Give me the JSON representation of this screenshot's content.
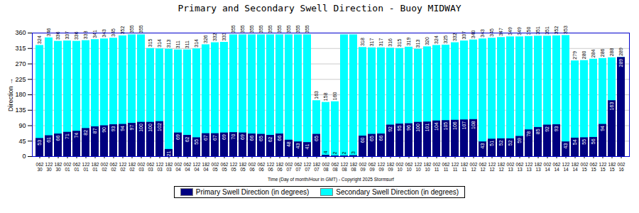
{
  "chart_data": {
    "type": "bar",
    "title": "Primary and Secondary Swell Direction - Buoy MIDWAY",
    "xlabel": "Time (Day of month/Hour in GMT) - Copyright 2025 Stormsurf",
    "ylabel": "Direction",
    "categories": [
      "062\n30",
      "122\n30",
      "182\n30",
      "002\n01",
      "062\n01",
      "122\n01",
      "182\n01",
      "002\n02",
      "062\n02",
      "122\n02",
      "182\n02",
      "002\n03",
      "062\n03",
      "122\n03",
      "182\n03",
      "002\n04",
      "062\n04",
      "122\n04",
      "182\n04",
      "002\n05",
      "062\n05",
      "122\n05",
      "182\n05",
      "002\n06",
      "062\n06",
      "122\n06",
      "182\n06",
      "002\n07",
      "062\n07",
      "122\n07",
      "182\n07",
      "002\n08",
      "062\n08",
      "122\n08",
      "182\n08",
      "002\n09",
      "062\n09",
      "122\n09",
      "182\n09",
      "002\n10",
      "062\n10",
      "122\n10",
      "182\n10",
      "002\n11",
      "062\n11",
      "122\n11",
      "182\n11",
      "002\n12",
      "062\n12",
      "122\n12",
      "182\n12",
      "002\n13",
      "062\n13",
      "122\n13",
      "182\n13",
      "002\n14",
      "062\n14",
      "122\n14",
      "182\n14",
      "002\n15",
      "062\n15",
      "122\n15",
      "182\n15",
      "002\n16"
    ],
    "series": [
      {
        "name": "Primary Swell Direction (in degrees)",
        "color": "#000080",
        "values": [
          53,
          61,
          66,
          71,
          74,
          82,
          87,
          90,
          93,
          94,
          97,
          100,
          100,
          102,
          21,
          69,
          62,
          55,
          67,
          67,
          69,
          70,
          69,
          66,
          65,
          62,
          66,
          48,
          43,
          41,
          65,
          4,
          2,
          2,
          3,
          60,
          65,
          66,
          92,
          95,
          96,
          100,
          101,
          104,
          105,
          106,
          107,
          108,
          43,
          51,
          52,
          52,
          59,
          78,
          85,
          92,
          93,
          43,
          54,
          55,
          56,
          94,
          163,
          289
        ]
      },
      {
        "name": "Secondary Swell Direction (in degrees)",
        "color": "#00FFFF",
        "values": [
          324,
          346,
          336,
          337,
          336,
          338,
          341,
          343,
          345,
          352,
          355,
          355,
          315,
          314,
          313,
          311,
          311,
          314,
          326,
          332,
          333,
          355,
          355,
          355,
          355,
          355,
          355,
          355,
          355,
          355,
          163,
          158,
          160,
          355,
          355,
          318,
          317,
          317,
          316,
          315,
          319,
          313,
          320,
          324,
          325,
          332,
          337,
          340,
          343,
          345,
          347,
          349,
          349,
          350,
          351,
          351,
          352,
          353,
          279,
          280,
          284,
          286,
          288,
          289
        ],
        "value_labels": [
          "324",
          "346",
          "336",
          "337",
          "336",
          "338",
          "341",
          "343",
          "345",
          "352",
          "355",
          "355",
          "315",
          "314",
          "313",
          "311",
          "311",
          "314",
          "326",
          "332",
          "333",
          "355",
          "355",
          "355",
          "355",
          "355",
          "355",
          "355",
          "355",
          "355",
          "163",
          "158",
          "160",
          null,
          null,
          "318",
          "317",
          "317",
          "316",
          "315",
          "319",
          "313",
          "320",
          "324",
          "325",
          "332",
          "337",
          "340",
          "343",
          "345",
          "347",
          "349",
          "349",
          "350",
          "351",
          "351",
          "352",
          "353",
          "279",
          "280",
          "284",
          "286",
          "288",
          "289"
        ]
      }
    ],
    "ylim": [
      0,
      360
    ],
    "yticks": [
      0,
      45,
      90,
      135,
      180,
      225,
      270,
      315,
      360
    ],
    "grid": true,
    "legend": "bottom",
    "stacked": false,
    "data_labels": true
  }
}
